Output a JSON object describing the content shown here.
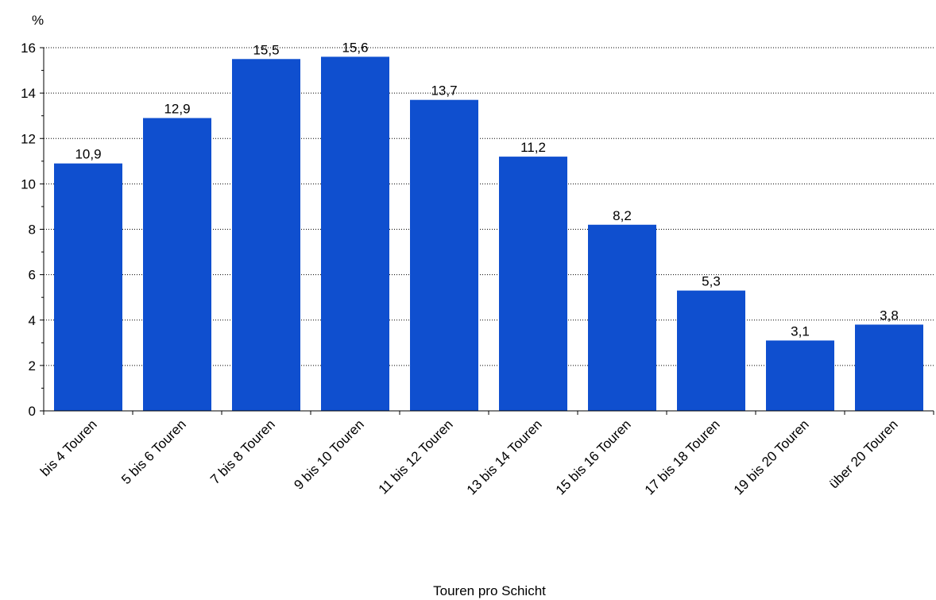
{
  "chart_data": {
    "type": "bar",
    "title": "",
    "unit_label": "%",
    "xlabel": "Touren pro Schicht",
    "ylabel": "",
    "ylim": [
      0,
      16
    ],
    "yticks": [
      0,
      2,
      4,
      6,
      8,
      10,
      12,
      14,
      16
    ],
    "grid": true,
    "categories": [
      "bis 4 Touren",
      "5 bis 6 Touren",
      "7 bis 8 Touren",
      "9 bis 10 Touren",
      "11 bis 12 Touren",
      "13 bis 14 Touren",
      "15 bis 16 Touren",
      "17 bis 18 Touren",
      "19 bis 20 Touren",
      "über 20 Touren"
    ],
    "values": [
      10.9,
      12.9,
      15.5,
      15.6,
      13.7,
      11.2,
      8.2,
      5.3,
      3.1,
      3.8
    ],
    "value_labels": [
      "10,9",
      "12,9",
      "15,5",
      "15,6",
      "13,7",
      "11,2",
      "8,2",
      "5,3",
      "3,1",
      "3,8"
    ],
    "bar_color": "#0f4fcf"
  }
}
